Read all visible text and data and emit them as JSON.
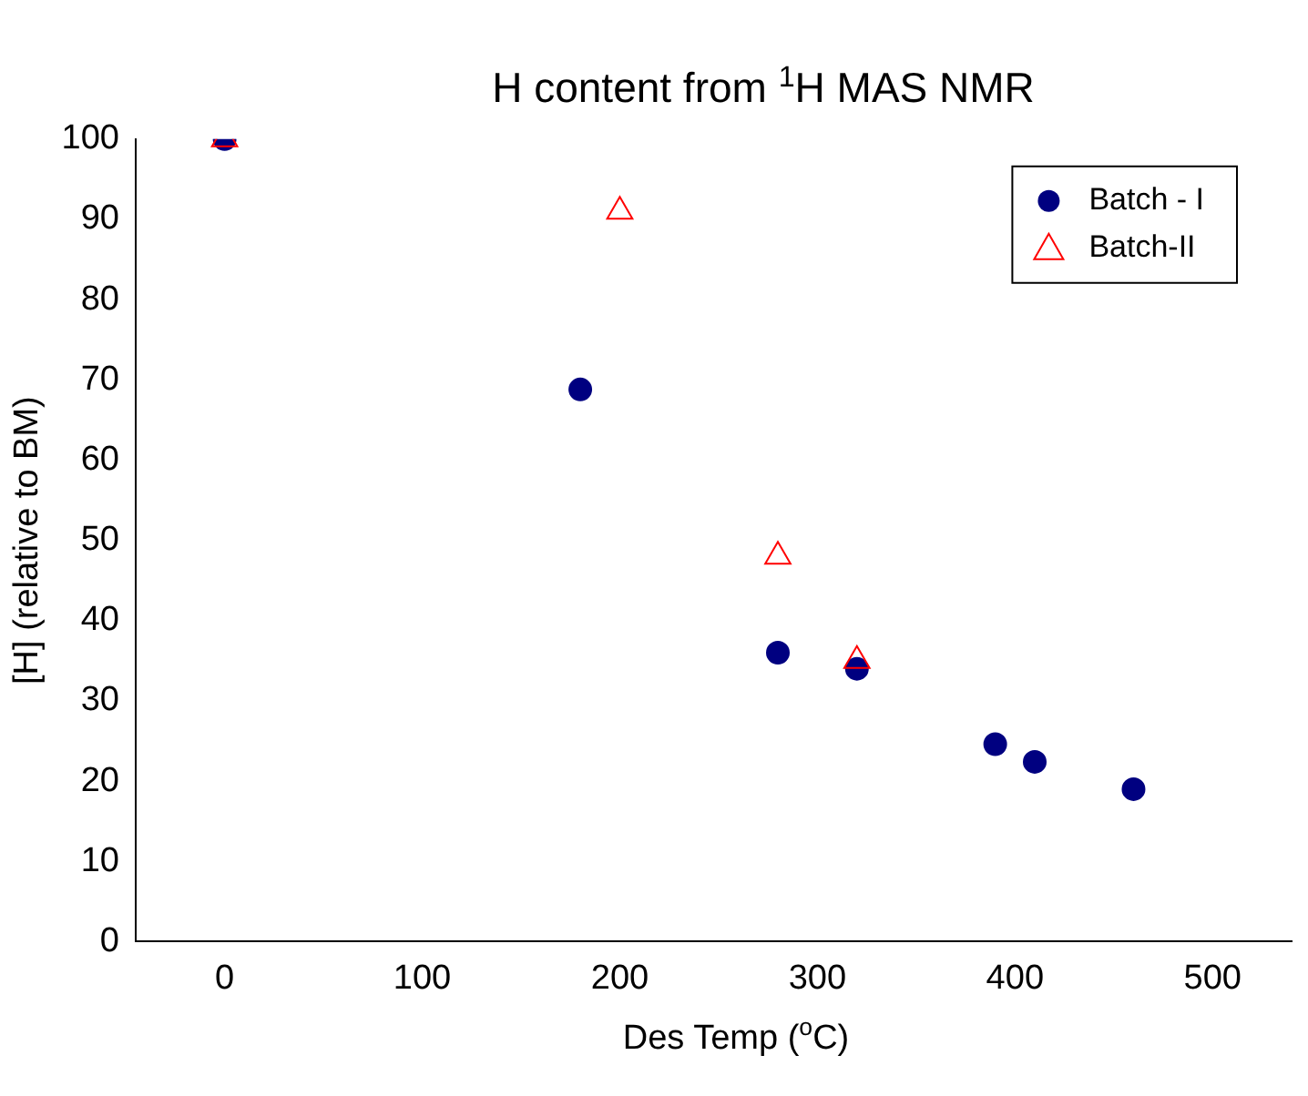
{
  "chart_data": {
    "type": "scatter",
    "title": "H content from $^{1}$H MAS NMR",
    "xlabel": "Des Temp ($^{o}$C)",
    "ylabel": "[H] (relative to BM)",
    "xlim": [
      -45,
      540
    ],
    "xticks": [
      0,
      100,
      200,
      300,
      400,
      500
    ],
    "ylim": [
      0,
      100
    ],
    "yticks": [
      0,
      10,
      20,
      30,
      40,
      50,
      60,
      70,
      80,
      90,
      100
    ],
    "grid": false,
    "legend": "top right",
    "series": [
      {
        "name": "Batch - I",
        "color": "#000080",
        "marker": "circle",
        "x": [
          0,
          180,
          280,
          320,
          390,
          410,
          460
        ],
        "values": [
          100,
          68.8,
          36,
          34,
          24.6,
          22.4,
          19
        ]
      },
      {
        "name": "Batch-II",
        "color": "#ff0000",
        "marker": "triangle",
        "x": [
          0,
          200,
          280,
          320
        ],
        "values": [
          100,
          91,
          48,
          35
        ]
      }
    ]
  }
}
